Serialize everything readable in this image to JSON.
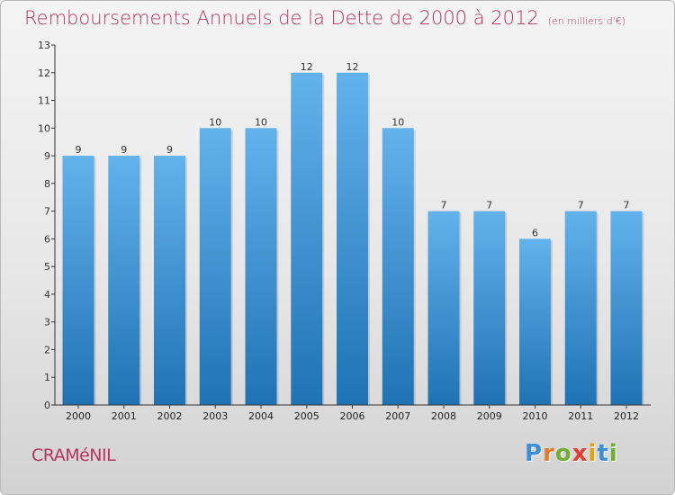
{
  "title": {
    "main": "Remboursements Annuels de la Dette de 2000 à 2012",
    "unit": "(en milliers d'€)"
  },
  "place": "CRAMéNIL",
  "logo": {
    "text": "Proxiti",
    "colors": [
      "#3a8fd6",
      "#e8762b",
      "#6fae32",
      "#e63b2e",
      "#e2a20a",
      "#3a8fd6",
      "#6fae32"
    ]
  },
  "colors": {
    "title": "#b5365f",
    "bar_top": "#62b2ec",
    "bar_bottom": "#1f73b4",
    "axis": "#333333"
  },
  "chart_data": {
    "type": "bar",
    "title": "Remboursements Annuels de la Dette de 2000 à 2012",
    "subtitle": "(en milliers d'€)",
    "xlabel": "",
    "ylabel": "",
    "categories": [
      "2000",
      "2001",
      "2002",
      "2003",
      "2004",
      "2005",
      "2006",
      "2007",
      "2008",
      "2009",
      "2010",
      "2011",
      "2012"
    ],
    "values": [
      9,
      9,
      9,
      10,
      10,
      12,
      12,
      10,
      7,
      7,
      6,
      7,
      7
    ],
    "ylim": [
      0,
      13
    ],
    "yticks": [
      0,
      1,
      2,
      3,
      4,
      5,
      6,
      7,
      8,
      9,
      10,
      11,
      12,
      13
    ],
    "grid": false,
    "data_labels": true
  }
}
